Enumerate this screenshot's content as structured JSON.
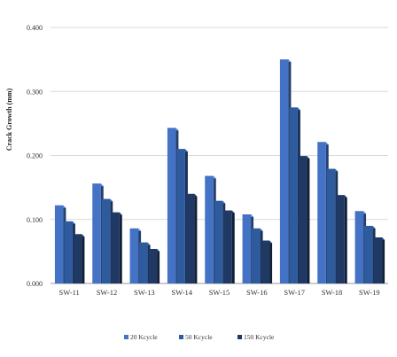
{
  "chart_data": {
    "type": "bar",
    "ylabel": "Crack Growth (mm)",
    "xlabel": "",
    "title": "",
    "ylim": [
      0,
      0.4
    ],
    "yticks": [
      "0.000",
      "0.100",
      "0.200",
      "0.300",
      "0.400"
    ],
    "grid": true,
    "legend_position": "bottom",
    "categories": [
      "SW-11",
      "SW-12",
      "SW-13",
      "SW-14",
      "SW-15",
      "SW-16",
      "SW-17",
      "SW-18",
      "SW-19"
    ],
    "series": [
      {
        "name": "20 Kcycle",
        "color": "#4472c4",
        "values": [
          0.122,
          0.156,
          0.086,
          0.243,
          0.168,
          0.108,
          0.35,
          0.221,
          0.113
        ]
      },
      {
        "name": "50 Kcycle",
        "color": "#2e5a9e",
        "values": [
          0.097,
          0.132,
          0.064,
          0.21,
          0.129,
          0.086,
          0.275,
          0.179,
          0.09
        ]
      },
      {
        "name": "150 Kcycle",
        "color": "#1f3864",
        "values": [
          0.077,
          0.111,
          0.054,
          0.14,
          0.114,
          0.067,
          0.199,
          0.138,
          0.072
        ]
      }
    ]
  }
}
